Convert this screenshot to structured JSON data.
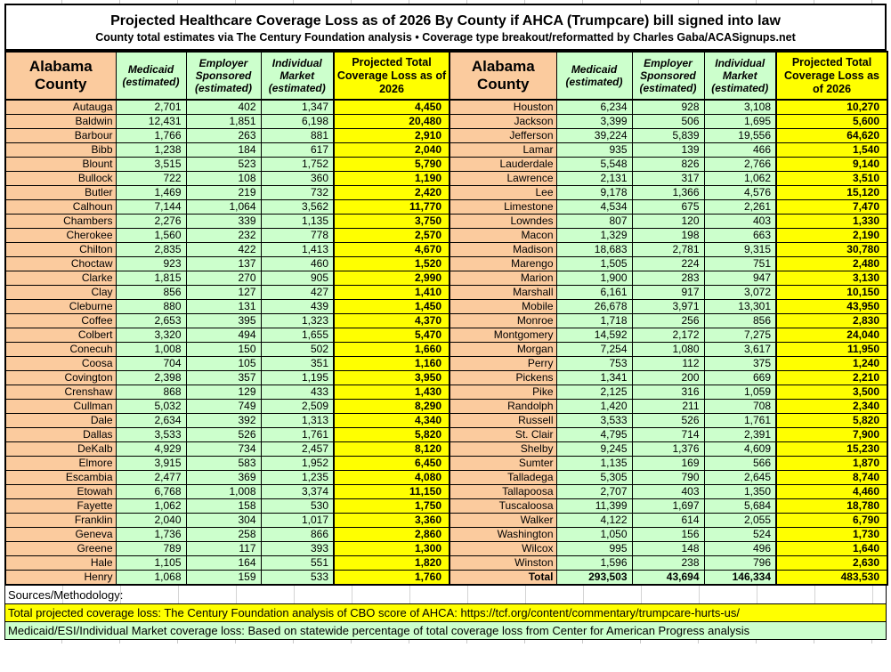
{
  "title": {
    "line1": "Projected Healthcare Coverage Loss as of 2026 By County if AHCA (Trumpcare) bill signed into law",
    "line2": "County total estimates via The Century Foundation analysis • Coverage type breakout/reformatted by Charles Gaba/ACASignups.net"
  },
  "columns": {
    "county": "Alabama County",
    "medicaid": "Medicaid (estimated)",
    "employer": "Employer Sponsored (estimated)",
    "individual": "Individual Market (estimated)",
    "total": "Projected Total Coverage Loss as of 2026"
  },
  "chart_data": {
    "type": "table",
    "title": "Projected Healthcare Coverage Loss as of 2026 By County if AHCA (Trumpcare) bill signed into law",
    "column_headers": [
      "Alabama County",
      "Medicaid (estimated)",
      "Employer Sponsored (estimated)",
      "Individual Market (estimated)",
      "Projected Total Coverage Loss as of 2026"
    ],
    "left_rows": [
      [
        "Autauga",
        "2,701",
        "402",
        "1,347",
        "4,450"
      ],
      [
        "Baldwin",
        "12,431",
        "1,851",
        "6,198",
        "20,480"
      ],
      [
        "Barbour",
        "1,766",
        "263",
        "881",
        "2,910"
      ],
      [
        "Bibb",
        "1,238",
        "184",
        "617",
        "2,040"
      ],
      [
        "Blount",
        "3,515",
        "523",
        "1,752",
        "5,790"
      ],
      [
        "Bullock",
        "722",
        "108",
        "360",
        "1,190"
      ],
      [
        "Butler",
        "1,469",
        "219",
        "732",
        "2,420"
      ],
      [
        "Calhoun",
        "7,144",
        "1,064",
        "3,562",
        "11,770"
      ],
      [
        "Chambers",
        "2,276",
        "339",
        "1,135",
        "3,750"
      ],
      [
        "Cherokee",
        "1,560",
        "232",
        "778",
        "2,570"
      ],
      [
        "Chilton",
        "2,835",
        "422",
        "1,413",
        "4,670"
      ],
      [
        "Choctaw",
        "923",
        "137",
        "460",
        "1,520"
      ],
      [
        "Clarke",
        "1,815",
        "270",
        "905",
        "2,990"
      ],
      [
        "Clay",
        "856",
        "127",
        "427",
        "1,410"
      ],
      [
        "Cleburne",
        "880",
        "131",
        "439",
        "1,450"
      ],
      [
        "Coffee",
        "2,653",
        "395",
        "1,323",
        "4,370"
      ],
      [
        "Colbert",
        "3,320",
        "494",
        "1,655",
        "5,470"
      ],
      [
        "Conecuh",
        "1,008",
        "150",
        "502",
        "1,660"
      ],
      [
        "Coosa",
        "704",
        "105",
        "351",
        "1,160"
      ],
      [
        "Covington",
        "2,398",
        "357",
        "1,195",
        "3,950"
      ],
      [
        "Crenshaw",
        "868",
        "129",
        "433",
        "1,430"
      ],
      [
        "Cullman",
        "5,032",
        "749",
        "2,509",
        "8,290"
      ],
      [
        "Dale",
        "2,634",
        "392",
        "1,313",
        "4,340"
      ],
      [
        "Dallas",
        "3,533",
        "526",
        "1,761",
        "5,820"
      ],
      [
        "DeKalb",
        "4,929",
        "734",
        "2,457",
        "8,120"
      ],
      [
        "Elmore",
        "3,915",
        "583",
        "1,952",
        "6,450"
      ],
      [
        "Escambia",
        "2,477",
        "369",
        "1,235",
        "4,080"
      ],
      [
        "Etowah",
        "6,768",
        "1,008",
        "3,374",
        "11,150"
      ],
      [
        "Fayette",
        "1,062",
        "158",
        "530",
        "1,750"
      ],
      [
        "Franklin",
        "2,040",
        "304",
        "1,017",
        "3,360"
      ],
      [
        "Geneva",
        "1,736",
        "258",
        "866",
        "2,860"
      ],
      [
        "Greene",
        "789",
        "117",
        "393",
        "1,300"
      ],
      [
        "Hale",
        "1,105",
        "164",
        "551",
        "1,820"
      ],
      [
        "Henry",
        "1,068",
        "159",
        "533",
        "1,760"
      ]
    ],
    "right_rows": [
      [
        "Houston",
        "6,234",
        "928",
        "3,108",
        "10,270"
      ],
      [
        "Jackson",
        "3,399",
        "506",
        "1,695",
        "5,600"
      ],
      [
        "Jefferson",
        "39,224",
        "5,839",
        "19,556",
        "64,620"
      ],
      [
        "Lamar",
        "935",
        "139",
        "466",
        "1,540"
      ],
      [
        "Lauderdale",
        "5,548",
        "826",
        "2,766",
        "9,140"
      ],
      [
        "Lawrence",
        "2,131",
        "317",
        "1,062",
        "3,510"
      ],
      [
        "Lee",
        "9,178",
        "1,366",
        "4,576",
        "15,120"
      ],
      [
        "Limestone",
        "4,534",
        "675",
        "2,261",
        "7,470"
      ],
      [
        "Lowndes",
        "807",
        "120",
        "403",
        "1,330"
      ],
      [
        "Macon",
        "1,329",
        "198",
        "663",
        "2,190"
      ],
      [
        "Madison",
        "18,683",
        "2,781",
        "9,315",
        "30,780"
      ],
      [
        "Marengo",
        "1,505",
        "224",
        "751",
        "2,480"
      ],
      [
        "Marion",
        "1,900",
        "283",
        "947",
        "3,130"
      ],
      [
        "Marshall",
        "6,161",
        "917",
        "3,072",
        "10,150"
      ],
      [
        "Mobile",
        "26,678",
        "3,971",
        "13,301",
        "43,950"
      ],
      [
        "Monroe",
        "1,718",
        "256",
        "856",
        "2,830"
      ],
      [
        "Montgomery",
        "14,592",
        "2,172",
        "7,275",
        "24,040"
      ],
      [
        "Morgan",
        "7,254",
        "1,080",
        "3,617",
        "11,950"
      ],
      [
        "Perry",
        "753",
        "112",
        "375",
        "1,240"
      ],
      [
        "Pickens",
        "1,341",
        "200",
        "669",
        "2,210"
      ],
      [
        "Pike",
        "2,125",
        "316",
        "1,059",
        "3,500"
      ],
      [
        "Randolph",
        "1,420",
        "211",
        "708",
        "2,340"
      ],
      [
        "Russell",
        "3,533",
        "526",
        "1,761",
        "5,820"
      ],
      [
        "St. Clair",
        "4,795",
        "714",
        "2,391",
        "7,900"
      ],
      [
        "Shelby",
        "9,245",
        "1,376",
        "4,609",
        "15,230"
      ],
      [
        "Sumter",
        "1,135",
        "169",
        "566",
        "1,870"
      ],
      [
        "Talladega",
        "5,305",
        "790",
        "2,645",
        "8,740"
      ],
      [
        "Tallapoosa",
        "2,707",
        "403",
        "1,350",
        "4,460"
      ],
      [
        "Tuscaloosa",
        "11,399",
        "1,697",
        "5,684",
        "18,780"
      ],
      [
        "Walker",
        "4,122",
        "614",
        "2,055",
        "6,790"
      ],
      [
        "Washington",
        "1,050",
        "156",
        "524",
        "1,730"
      ],
      [
        "Wilcox",
        "995",
        "148",
        "496",
        "1,640"
      ],
      [
        "Winston",
        "1,596",
        "238",
        "796",
        "2,630"
      ],
      [
        "Total",
        "293,503",
        "43,694",
        "146,334",
        "483,530"
      ]
    ]
  },
  "footer": {
    "sources_label": "Sources/Methodology:",
    "note_total": "Total projected coverage loss: The Century Foundation analysis of CBO score of AHCA: https://tcf.org/content/commentary/trumpcare-hurts-us/",
    "note_breakout": "Medicaid/ESI/Individual Market coverage loss: Based on statewide percentage of total coverage loss from Center for American Progress analysis"
  },
  "colors": {
    "county_column_bg": "#FBCB9E",
    "estimate_column_bg": "#CCFFCC",
    "total_column_bg": "#FFFF00",
    "border": "#000000"
  }
}
